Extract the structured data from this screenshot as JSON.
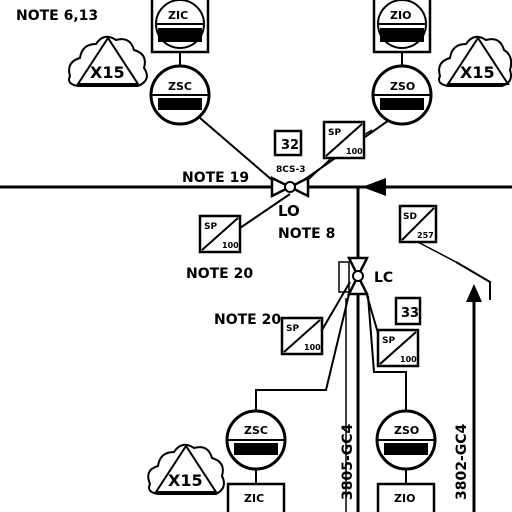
{
  "notes": {
    "n1": "NOTE 6,13",
    "n2": "NOTE 19",
    "n3": "NOTE 8",
    "n4": "NOTE 20",
    "n5": "NOTE 20"
  },
  "valves": {
    "upper_lock": "LO",
    "lower_lock": "LC"
  },
  "boxes": {
    "b32": "32",
    "b33": "33"
  },
  "instruments": {
    "zic_top": "ZIC",
    "zio_top": "ZIO",
    "zsc_top": "ZSC",
    "zso_top": "ZSO",
    "zsc_bottom": "ZSC",
    "zso_bottom": "ZSO",
    "zic_bottom": "ZIC",
    "zio_bottom": "ZIO"
  },
  "clouds": {
    "left_top": "X15",
    "right_top": "X15",
    "left_bottom": "X15"
  },
  "diag_boxes": {
    "sp_top": "SP",
    "sp_top_sub": "100",
    "sp_left": "SP",
    "sp_left_sub": "100",
    "sp_mid": "SP",
    "sp_mid_sub": "100",
    "sp_low": "SP",
    "sp_low_sub": "100",
    "sd_right": "SD",
    "sd_right_sub": "257"
  },
  "lines": {
    "line_a": "3805-GC4",
    "line_b": "3802-GC4"
  },
  "tags": {
    "upper_valve_tag": "8CS-3"
  }
}
